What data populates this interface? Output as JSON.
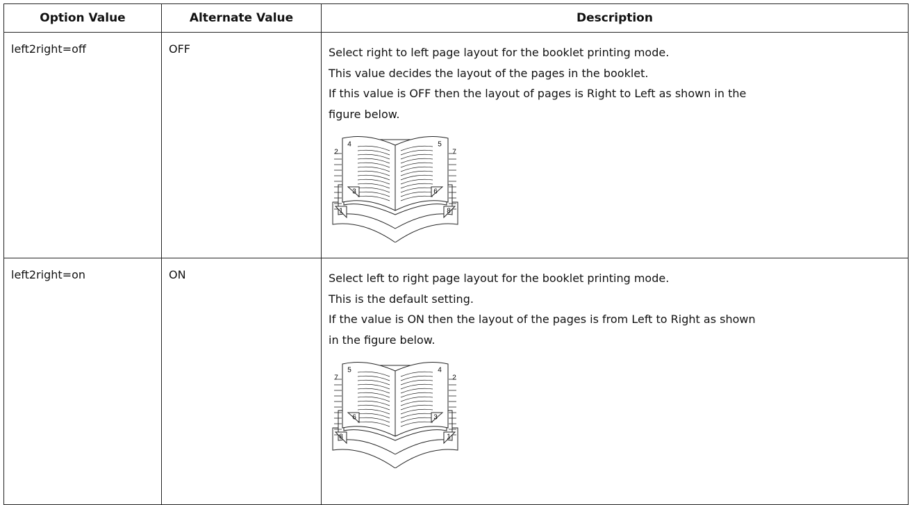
{
  "table": {
    "header": [
      "Option Value",
      "Alternate Value",
      "Description"
    ],
    "rows": [
      {
        "option": "left2right=off",
        "alternate": "OFF",
        "description": [
          "Select right to left page layout for the booklet printing mode.",
          "This value decides the layout of the pages in the booklet.",
          "If this value is OFF then the layout of pages is Right to Left as shown in the",
          "figure below."
        ],
        "figure": [
          "4",
          "5",
          "2",
          "7",
          "3",
          "6",
          "1",
          "8"
        ]
      },
      {
        "option": "left2right=on",
        "alternate": "ON",
        "description": [
          "Select left to right page layout for the booklet printing mode.",
          "This is the default setting.",
          "If the value is ON then the layout of the pages is from Left to Right as shown",
          "in the figure below."
        ],
        "figure": [
          "5",
          "4",
          "7",
          "2",
          "6",
          "3",
          "8",
          "1"
        ]
      }
    ]
  }
}
